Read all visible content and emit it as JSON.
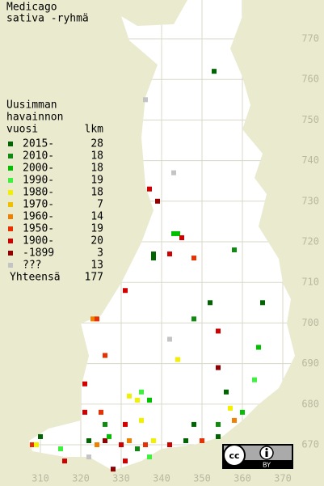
{
  "title": [
    "Medicago",
    "sativa -ryhmä"
  ],
  "legend": {
    "heading": [
      "Uusimman",
      "havainnon",
      "vuosi"
    ],
    "count_header": "lkm",
    "items": [
      {
        "label": "2015-",
        "count": 28,
        "color": "#006400"
      },
      {
        "label": "2010-",
        "count": 18,
        "color": "#108a10"
      },
      {
        "label": "2000-",
        "count": 18,
        "color": "#00c000"
      },
      {
        "label": "1990-",
        "count": 19,
        "color": "#40f040"
      },
      {
        "label": "1980-",
        "count": 18,
        "color": "#f0f000"
      },
      {
        "label": "1970-",
        "count": 7,
        "color": "#f0c000"
      },
      {
        "label": "1960-",
        "count": 14,
        "color": "#f08000"
      },
      {
        "label": "1950-",
        "count": 19,
        "color": "#e83000"
      },
      {
        "label": "1900-",
        "count": 20,
        "color": "#d00000"
      },
      {
        "label": "-1899",
        "count": 3,
        "color": "#900000"
      },
      {
        "label": "???",
        "count": 13,
        "color": "#c4c4c4"
      }
    ],
    "total": {
      "label": "Yhteensä",
      "count": 177
    }
  },
  "grid": {
    "xticks": [
      310,
      320,
      330,
      340,
      350,
      360,
      370
    ],
    "yticks": [
      670,
      680,
      690,
      700,
      710,
      720,
      730,
      740,
      750,
      760,
      770
    ]
  },
  "observations": [
    [
      353,
      762,
      0
    ],
    [
      336,
      755,
      10
    ],
    [
      343,
      737,
      10
    ],
    [
      337,
      733,
      8
    ],
    [
      339,
      730,
      9
    ],
    [
      343,
      722,
      2
    ],
    [
      344,
      722,
      2
    ],
    [
      345,
      721,
      8
    ],
    [
      338,
      717,
      0
    ],
    [
      338,
      716,
      0
    ],
    [
      342,
      717,
      8
    ],
    [
      358,
      718,
      1
    ],
    [
      348,
      716,
      7
    ],
    [
      331,
      708,
      8
    ],
    [
      352,
      705,
      0
    ],
    [
      365,
      705,
      0
    ],
    [
      323,
      701,
      6
    ],
    [
      324,
      701,
      7
    ],
    [
      348,
      701,
      1
    ],
    [
      354,
      698,
      8
    ],
    [
      364,
      694,
      2
    ],
    [
      342,
      696,
      10
    ],
    [
      326,
      692,
      7
    ],
    [
      344,
      691,
      4
    ],
    [
      354,
      689,
      9
    ],
    [
      363,
      686,
      3
    ],
    [
      321,
      685,
      8
    ],
    [
      356,
      683,
      0
    ],
    [
      332,
      682,
      4
    ],
    [
      335,
      683,
      3
    ],
    [
      334,
      681,
      4
    ],
    [
      337,
      681,
      2
    ],
    [
      321,
      678,
      8
    ],
    [
      357,
      679,
      4
    ],
    [
      360,
      678,
      2
    ],
    [
      325,
      678,
      7
    ],
    [
      326,
      675,
      1
    ],
    [
      331,
      675,
      8
    ],
    [
      335,
      676,
      4
    ],
    [
      348,
      675,
      0
    ],
    [
      354,
      675,
      1
    ],
    [
      358,
      676,
      6
    ],
    [
      308,
      670,
      7
    ],
    [
      309,
      670,
      4
    ],
    [
      310,
      672,
      0
    ],
    [
      315,
      669,
      3
    ],
    [
      316,
      666,
      8
    ],
    [
      322,
      671,
      0
    ],
    [
      324,
      670,
      6
    ],
    [
      326,
      671,
      9
    ],
    [
      327,
      672,
      2
    ],
    [
      330,
      670,
      8
    ],
    [
      332,
      671,
      6
    ],
    [
      334,
      669,
      1
    ],
    [
      336,
      670,
      7
    ],
    [
      338,
      671,
      4
    ],
    [
      342,
      670,
      8
    ],
    [
      346,
      671,
      0
    ],
    [
      350,
      671,
      7
    ],
    [
      354,
      672,
      0
    ],
    [
      322,
      667,
      10
    ],
    [
      328,
      664,
      9
    ],
    [
      331,
      666,
      8
    ],
    [
      337,
      667,
      3
    ]
  ],
  "license_badge": {
    "label": "BY"
  }
}
